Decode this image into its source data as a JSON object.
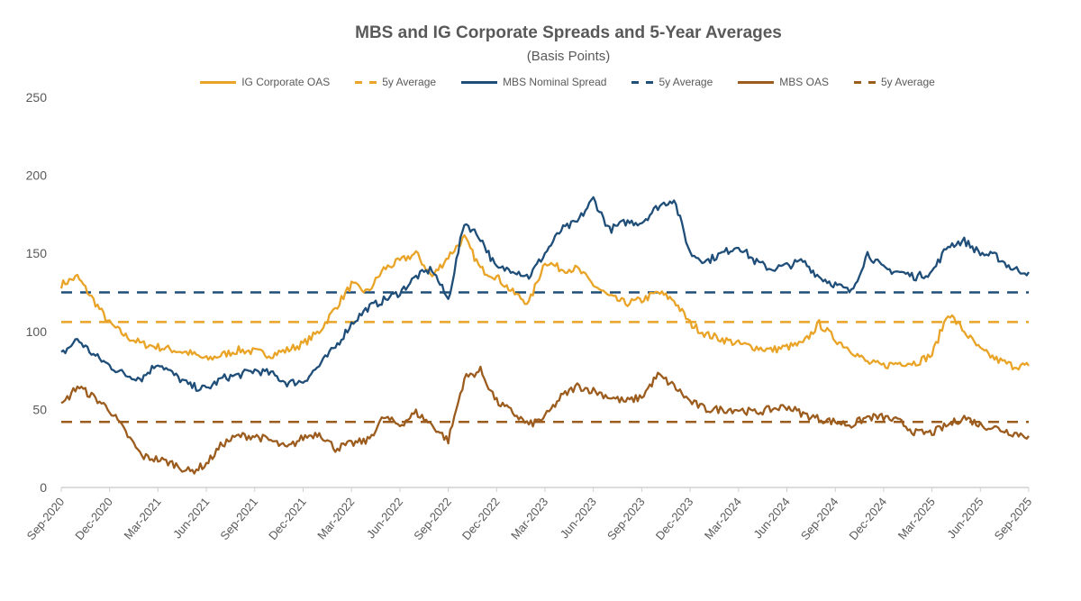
{
  "chart_data": {
    "type": "line",
    "title": "MBS and IG Corporate Spreads and 5-Year Averages",
    "subtitle": "(Basis Points)",
    "xlabel": "",
    "ylabel": "",
    "ylim": [
      0,
      250
    ],
    "yticks": [
      "0",
      "50",
      "100",
      "150",
      "200",
      "250"
    ],
    "xticks": [
      "Sep-2020",
      "Dec-2020",
      "Mar-2021",
      "Jun-2021",
      "Sep-2021",
      "Dec-2021",
      "Mar-2022",
      "Jun-2022",
      "Sep-2022",
      "Dec-2022",
      "Mar-2023",
      "Jun-2023",
      "Sep-2023",
      "Dec-2023",
      "Mar-2024",
      "Jun-2024",
      "Sep-2024",
      "Dec-2024",
      "Mar-2025",
      "Jun-2025",
      "Sep-2025"
    ],
    "x_frequency": "monthly, Sep-2020 to Sep-2025",
    "grid": false,
    "legend_placement": "top",
    "series": [
      {
        "name": "IG Corporate OAS",
        "color": "#E9A427",
        "style": "solid",
        "values": [
          130,
          135,
          120,
          105,
          97,
          92,
          90,
          88,
          86,
          82,
          85,
          88,
          87,
          85,
          88,
          92,
          100,
          115,
          130,
          125,
          140,
          145,
          150,
          135,
          148,
          160,
          140,
          135,
          125,
          118,
          145,
          140,
          140,
          130,
          122,
          118,
          120,
          125,
          120,
          105,
          98,
          95,
          92,
          90,
          88,
          90,
          92,
          105,
          95,
          88,
          80,
          78,
          80,
          80,
          85,
          112,
          100,
          88,
          82,
          78,
          78
        ]
      },
      {
        "name": "5y Average",
        "color": "#E9A427",
        "style": "dashed",
        "constant": 106
      },
      {
        "name": "MBS Nominal Spread",
        "color": "#1F4E79",
        "style": "solid",
        "values": [
          85,
          95,
          85,
          78,
          72,
          70,
          80,
          72,
          65,
          63,
          70,
          72,
          75,
          73,
          67,
          68,
          78,
          90,
          105,
          115,
          120,
          125,
          135,
          140,
          120,
          170,
          160,
          140,
          140,
          135,
          150,
          165,
          170,
          185,
          165,
          170,
          170,
          180,
          185,
          150,
          145,
          150,
          155,
          145,
          140,
          142,
          145,
          135,
          130,
          125,
          150,
          140,
          138,
          135,
          138,
          155,
          158,
          150,
          148,
          140,
          138
        ]
      },
      {
        "name": "5y Average",
        "color": "#1F4E79",
        "style": "dashed",
        "constant": 125
      },
      {
        "name": "MBS OAS",
        "color": "#9C5C1E",
        "style": "solid",
        "values": [
          52,
          65,
          58,
          50,
          35,
          20,
          18,
          15,
          10,
          15,
          28,
          33,
          33,
          30,
          25,
          32,
          35,
          25,
          28,
          30,
          45,
          40,
          48,
          40,
          30,
          70,
          75,
          55,
          48,
          40,
          45,
          58,
          65,
          62,
          58,
          55,
          58,
          72,
          65,
          55,
          50,
          50,
          50,
          48,
          50,
          52,
          47,
          44,
          42,
          40,
          45,
          45,
          42,
          35,
          35,
          40,
          45,
          40,
          38,
          35,
          33
        ]
      },
      {
        "name": "5y Average",
        "color": "#9C5C1E",
        "style": "dashed",
        "constant": 42
      }
    ]
  }
}
